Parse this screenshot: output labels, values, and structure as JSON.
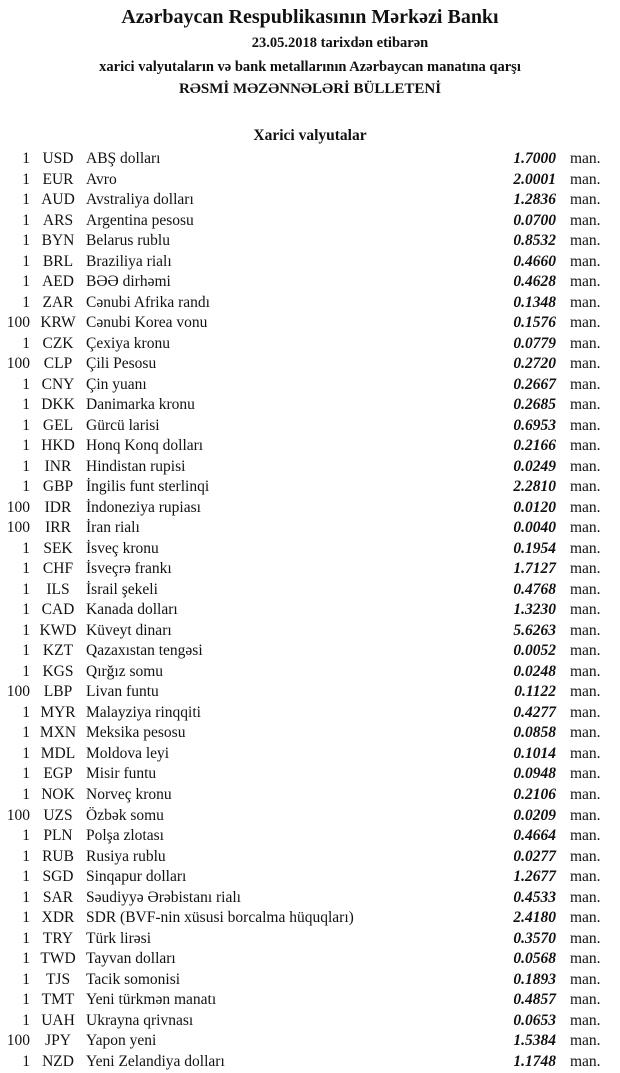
{
  "header": {
    "title": "Azərbaycan Respublikasının Mərkəzi Bankı",
    "date_line": "23.05.2018  tarixdən etibarən",
    "subtitle": "xarici valyutaların və bank metallarının Azərbaycan manatına qarşı",
    "bulletin": "RƏSMİ MƏZƏNNƏLƏRİ BÜLLETENİ",
    "section": "Xarici valyutalar"
  },
  "unit": "man.",
  "rates": [
    {
      "nominal": "1",
      "code": "USD",
      "name": "ABŞ dolları",
      "value": "1.7000"
    },
    {
      "nominal": "1",
      "code": "EUR",
      "name": "Avro",
      "value": "2.0001"
    },
    {
      "nominal": "1",
      "code": "AUD",
      "name": "Avstraliya dolları",
      "value": "1.2836"
    },
    {
      "nominal": "1",
      "code": "ARS",
      "name": "Argentina pesosu",
      "value": "0.0700"
    },
    {
      "nominal": "1",
      "code": "BYN",
      "name": "Belarus rublu",
      "value": "0.8532"
    },
    {
      "nominal": "1",
      "code": "BRL",
      "name": "Braziliya rialı",
      "value": "0.4660"
    },
    {
      "nominal": "1",
      "code": "AED",
      "name": "BƏƏ dirhəmi",
      "value": "0.4628"
    },
    {
      "nominal": "1",
      "code": "ZAR",
      "name": "Cənubi Afrika randı",
      "value": "0.1348"
    },
    {
      "nominal": "100",
      "code": "KRW",
      "name": "Cənubi Korea vonu",
      "value": "0.1576"
    },
    {
      "nominal": "1",
      "code": "CZK",
      "name": "Çexiya kronu",
      "value": "0.0779"
    },
    {
      "nominal": "100",
      "code": "CLP",
      "name": "Çili Pesosu",
      "value": "0.2720"
    },
    {
      "nominal": "1",
      "code": "CNY",
      "name": "Çin yuanı",
      "value": "0.2667"
    },
    {
      "nominal": "1",
      "code": "DKK",
      "name": "Danimarka kronu",
      "value": "0.2685"
    },
    {
      "nominal": "1",
      "code": "GEL",
      "name": "Gürcü larisi",
      "value": "0.6953"
    },
    {
      "nominal": "1",
      "code": "HKD",
      "name": "Honq Konq dolları",
      "value": "0.2166"
    },
    {
      "nominal": "1",
      "code": "INR",
      "name": "Hindistan rupisi",
      "value": "0.0249"
    },
    {
      "nominal": "1",
      "code": "GBP",
      "name": "İngilis funt sterlinqi",
      "value": "2.2810"
    },
    {
      "nominal": "100",
      "code": "IDR",
      "name": "İndoneziya rupiası",
      "value": "0.0120"
    },
    {
      "nominal": "100",
      "code": "IRR",
      "name": "İran rialı",
      "value": "0.0040"
    },
    {
      "nominal": "1",
      "code": "SEK",
      "name": "İsveç kronu",
      "value": "0.1954"
    },
    {
      "nominal": "1",
      "code": "CHF",
      "name": "İsveçrə frankı",
      "value": "1.7127"
    },
    {
      "nominal": "1",
      "code": "ILS",
      "name": "İsrail şekeli",
      "value": "0.4768"
    },
    {
      "nominal": "1",
      "code": "CAD",
      "name": "Kanada dolları",
      "value": "1.3230"
    },
    {
      "nominal": "1",
      "code": "KWD",
      "name": "Küveyt dinarı",
      "value": "5.6263"
    },
    {
      "nominal": "1",
      "code": "KZT",
      "name": "Qazaxıstan tengəsi",
      "value": "0.0052"
    },
    {
      "nominal": "1",
      "code": "KGS",
      "name": "Qırğız somu",
      "value": "0.0248"
    },
    {
      "nominal": "100",
      "code": "LBP",
      "name": "Livan funtu",
      "value": "0.1122"
    },
    {
      "nominal": "1",
      "code": "MYR",
      "name": "Malayziya rinqqiti",
      "value": "0.4277"
    },
    {
      "nominal": "1",
      "code": "MXN",
      "name": "Meksika pesosu",
      "value": "0.0858"
    },
    {
      "nominal": "1",
      "code": "MDL",
      "name": "Moldova leyi",
      "value": "0.1014"
    },
    {
      "nominal": "1",
      "code": "EGP",
      "name": "Misir funtu",
      "value": "0.0948"
    },
    {
      "nominal": "1",
      "code": "NOK",
      "name": "Norveç kronu",
      "value": "0.2106"
    },
    {
      "nominal": "100",
      "code": "UZS",
      "name": "Özbək somu",
      "value": "0.0209"
    },
    {
      "nominal": "1",
      "code": "PLN",
      "name": "Polşa zlotası",
      "value": "0.4664"
    },
    {
      "nominal": "1",
      "code": "RUB",
      "name": "Rusiya rublu",
      "value": "0.0277"
    },
    {
      "nominal": "1",
      "code": "SGD",
      "name": "Sinqapur dolları",
      "value": "1.2677"
    },
    {
      "nominal": "1",
      "code": "SAR",
      "name": "Səudiyyə Ərəbistanı rialı",
      "value": "0.4533"
    },
    {
      "nominal": "1",
      "code": "XDR",
      "name": "SDR (BVF-nin xüsusi borcalma hüquqları)",
      "value": "2.4180"
    },
    {
      "nominal": "1",
      "code": "TRY",
      "name": "Türk lirəsi",
      "value": "0.3570"
    },
    {
      "nominal": "1",
      "code": "TWD",
      "name": "Tayvan dolları",
      "value": "0.0568"
    },
    {
      "nominal": "1",
      "code": "TJS",
      "name": "Tacik somonisi",
      "value": "0.1893"
    },
    {
      "nominal": "1",
      "code": "TMT",
      "name": "Yeni türkmən manatı",
      "value": "0.4857"
    },
    {
      "nominal": "1",
      "code": "UAH",
      "name": "Ukrayna qrivnası",
      "value": "0.0653"
    },
    {
      "nominal": "100",
      "code": "JPY",
      "name": "Yapon yeni",
      "value": "1.5384"
    },
    {
      "nominal": "1",
      "code": "NZD",
      "name": "Yeni Zelandiya dolları",
      "value": "1.1748"
    }
  ]
}
